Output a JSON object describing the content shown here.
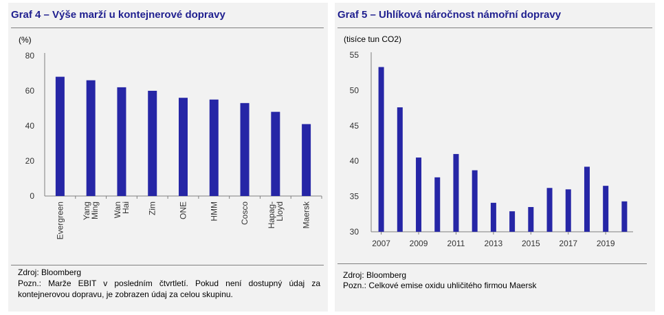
{
  "left_panel": {
    "title": "Graf 4 – Výše marží u kontejnerové dopravy",
    "source": "Zdroj: Bloomberg",
    "note": "Pozn.: Marže EBIT v posledním čtvrtletí. Pokud není dostupný údaj za kontejnerovou dopravu, je zobrazen údaj za celou skupinu."
  },
  "right_panel": {
    "title": "Graf 5 – Uhlíková náročnost námořní dopravy",
    "source": "Zdroj: Bloomberg",
    "note": "Pozn.: Celkové emise oxidu uhličitého firmou Maersk"
  },
  "colors": {
    "bar": "#2626a6",
    "title": "#1f1f8f",
    "axis": "#7f7f7f",
    "panel_bg": "#f2f2f2"
  },
  "chart_data": [
    {
      "type": "bar",
      "title": "Graf 4 – Výše marží u kontejnerové dopravy",
      "ylabel": "(%)",
      "xlabel": "",
      "categories": [
        [
          "Evergreen"
        ],
        [
          "Yang",
          "Ming"
        ],
        [
          "Wan",
          "Hai"
        ],
        [
          "Zim"
        ],
        [
          "ONE"
        ],
        [
          "HMM"
        ],
        [
          "Cosco"
        ],
        [
          "Hapag-",
          "Lloyd"
        ],
        [
          "Maersk"
        ]
      ],
      "values": [
        68,
        66,
        62,
        60,
        56,
        55,
        53,
        48,
        41
      ],
      "ylim": [
        0,
        80
      ],
      "yticks": [
        0,
        20,
        40,
        60,
        80
      ],
      "grid": false,
      "legend": "none"
    },
    {
      "type": "bar",
      "title": "Graf 5 – Uhlíková náročnost námořní dopravy",
      "ylabel": "(tisíce tun CO2)",
      "xlabel": "",
      "x": [
        2007,
        2008,
        2009,
        2010,
        2011,
        2012,
        2013,
        2014,
        2015,
        2016,
        2017,
        2018,
        2019,
        2020
      ],
      "values": [
        53.3,
        47.6,
        40.5,
        37.7,
        41.0,
        38.7,
        34.1,
        32.9,
        33.5,
        36.2,
        36.0,
        39.2,
        36.5,
        34.3
      ],
      "xtick_labels": [
        "2007",
        "2009",
        "2011",
        "2013",
        "2015",
        "2017",
        "2019"
      ],
      "ylim": [
        30,
        55
      ],
      "yticks": [
        30,
        35,
        40,
        45,
        50,
        55
      ],
      "grid": false,
      "legend": "none"
    }
  ]
}
